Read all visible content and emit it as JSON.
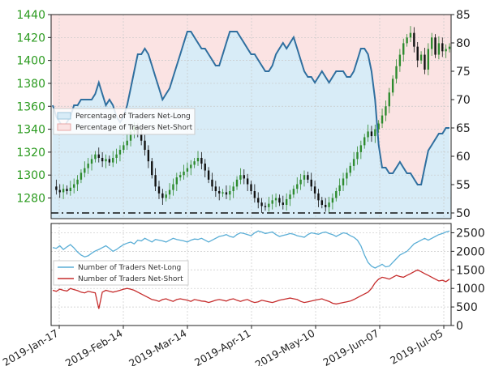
{
  "colors": {
    "price_axis": "#2a9a1e",
    "up_candle": "#2e8b2e",
    "down_candle": "#111111",
    "net_long": "#2f6f9f",
    "net_long_light": "#5aaed6",
    "net_short": "#c62d2d",
    "long_fill": "#d8ecf7",
    "short_fill": "#fbe3e3",
    "grid": "#c8c8c8"
  },
  "chart_data": [
    {
      "type": "line",
      "panel": "top",
      "x_ticks": [
        "2019-Jan-17",
        "2019-Feb-14",
        "2019-Mar-14",
        "2019-Apr-11",
        "2019-May-10",
        "2019-Jun-07",
        "2019-Jul-05"
      ],
      "y_left_ticks": [
        "1280",
        "1300",
        "1320",
        "1340",
        "1360",
        "1380",
        "1400",
        "1420",
        "1440"
      ],
      "y_left_range": [
        1262,
        1440
      ],
      "y_right_ticks": [
        "50",
        "55",
        "60",
        "65",
        "70",
        "75",
        "80",
        "85"
      ],
      "y_right_range": [
        49,
        85
      ],
      "reference_line": 50,
      "legend": [
        "Percentage of Traders Net-Long",
        "Percentage of Traders Net-Short"
      ],
      "price_close": [
        1290,
        1287,
        1285,
        1288,
        1286,
        1289,
        1292,
        1296,
        1302,
        1306,
        1310,
        1314,
        1318,
        1315,
        1312,
        1314,
        1311,
        1315,
        1318,
        1322,
        1326,
        1330,
        1338,
        1342,
        1336,
        1330,
        1322,
        1312,
        1300,
        1290,
        1284,
        1280,
        1283,
        1287,
        1292,
        1298,
        1300,
        1303,
        1306,
        1309,
        1312,
        1315,
        1310,
        1304,
        1296,
        1290,
        1286,
        1284,
        1285,
        1283,
        1286,
        1290,
        1296,
        1300,
        1297,
        1292,
        1286,
        1280,
        1276,
        1273,
        1272,
        1275,
        1278,
        1280,
        1276,
        1274,
        1279,
        1283,
        1288,
        1292,
        1296,
        1300,
        1296,
        1290,
        1284,
        1278,
        1274,
        1272,
        1276,
        1280,
        1286,
        1291,
        1297,
        1302,
        1308,
        1314,
        1320,
        1326,
        1333,
        1338,
        1334,
        1340,
        1345,
        1352,
        1360,
        1372,
        1384,
        1395,
        1405,
        1415,
        1420,
        1424,
        1412,
        1400,
        1405,
        1392,
        1410,
        1420,
        1405,
        1415,
        1408,
        1410,
        1412
      ],
      "pct_net_long": [
        69,
        67,
        66,
        65,
        66,
        67,
        69,
        69,
        70,
        70,
        70,
        70,
        71,
        73,
        71,
        69,
        70,
        69,
        67,
        66,
        67,
        69,
        72,
        75,
        78,
        78,
        79,
        78,
        76,
        74,
        72,
        70,
        71,
        72,
        74,
        76,
        78,
        80,
        82,
        82,
        81,
        80,
        79,
        79,
        78,
        77,
        76,
        76,
        78,
        80,
        82,
        82,
        82,
        81,
        80,
        79,
        78,
        78,
        77,
        76,
        75,
        75,
        76,
        78,
        79,
        80,
        79,
        80,
        81,
        79,
        77,
        75,
        74,
        74,
        73,
        74,
        75,
        74,
        73,
        74,
        75,
        75,
        75,
        74,
        74,
        75,
        77,
        79,
        79,
        78,
        75,
        70,
        62,
        58,
        58,
        57,
        57,
        58,
        59,
        58,
        57,
        57,
        56,
        55,
        55,
        58,
        61,
        62,
        63,
        64,
        64,
        65,
        65
      ],
      "series": [
        {
          "name": "Percentage of Traders Net-Long"
        },
        {
          "name": "Percentage of Traders Net-Short"
        }
      ]
    },
    {
      "type": "line",
      "panel": "bottom",
      "y_right_ticks": [
        "0",
        "500",
        "1000",
        "1500",
        "2000",
        "2500"
      ],
      "y_range": [
        0,
        2750
      ],
      "legend": [
        "Number of Traders Net-Long",
        "Number of Traders Net-Short"
      ],
      "series": [
        {
          "name": "Number of Traders Net-Long",
          "values": [
            2100,
            2080,
            2150,
            2050,
            2120,
            2180,
            2090,
            1980,
            1900,
            1850,
            1880,
            1950,
            2010,
            2050,
            2100,
            2150,
            2080,
            2000,
            2050,
            2120,
            2180,
            2220,
            2250,
            2200,
            2300,
            2280,
            2350,
            2300,
            2250,
            2320,
            2300,
            2280,
            2250,
            2300,
            2350,
            2320,
            2300,
            2280,
            2250,
            2300,
            2330,
            2320,
            2350,
            2300,
            2250,
            2300,
            2350,
            2400,
            2420,
            2450,
            2400,
            2380,
            2450,
            2500,
            2480,
            2450,
            2420,
            2500,
            2550,
            2520,
            2480,
            2500,
            2520,
            2450,
            2400,
            2430,
            2450,
            2480,
            2460,
            2420,
            2400,
            2380,
            2450,
            2500,
            2480,
            2460,
            2500,
            2520,
            2480,
            2450,
            2400,
            2450,
            2500,
            2480,
            2420,
            2380,
            2300,
            2150,
            1900,
            1700,
            1600,
            1550,
            1600,
            1650,
            1580,
            1600,
            1700,
            1800,
            1900,
            1950,
            2000,
            2100,
            2200,
            2250,
            2300,
            2350,
            2300,
            2350,
            2400,
            2450,
            2480,
            2520,
            2550
          ]
        },
        {
          "name": "Number of Traders Net-Short",
          "values": [
            950,
            920,
            980,
            950,
            930,
            1000,
            970,
            940,
            900,
            880,
            920,
            900,
            880,
            450,
            900,
            950,
            920,
            900,
            920,
            950,
            980,
            1000,
            980,
            950,
            900,
            850,
            800,
            750,
            700,
            680,
            650,
            700,
            720,
            680,
            650,
            700,
            720,
            700,
            680,
            650,
            700,
            680,
            660,
            650,
            620,
            650,
            680,
            700,
            680,
            660,
            700,
            720,
            680,
            650,
            680,
            700,
            650,
            620,
            640,
            680,
            660,
            640,
            620,
            650,
            680,
            700,
            720,
            740,
            720,
            700,
            650,
            620,
            640,
            660,
            680,
            700,
            720,
            680,
            650,
            600,
            580,
            600,
            620,
            640,
            660,
            700,
            750,
            800,
            850,
            900,
            1000,
            1150,
            1250,
            1300,
            1280,
            1250,
            1300,
            1350,
            1320,
            1300,
            1350,
            1400,
            1450,
            1500,
            1450,
            1400,
            1350,
            1300,
            1250,
            1200,
            1220,
            1180,
            1250
          ]
        }
      ]
    }
  ]
}
